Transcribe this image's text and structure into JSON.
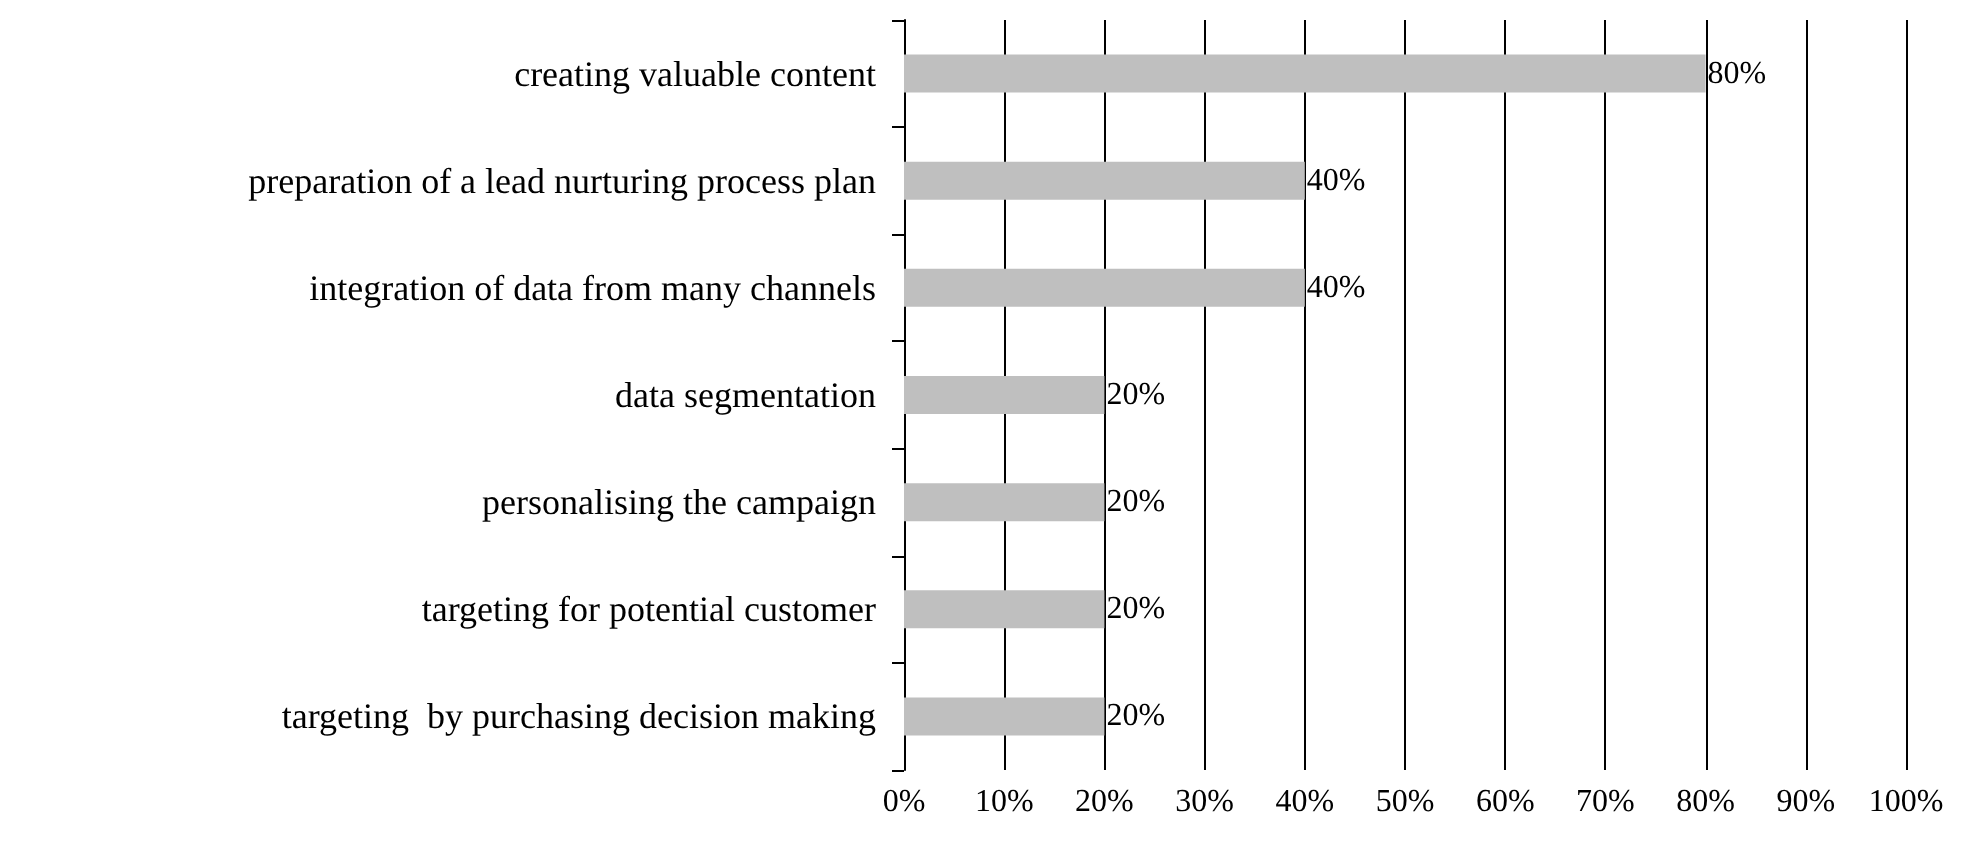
{
  "chart_data": {
    "type": "bar",
    "orientation": "horizontal",
    "categories": [
      "creating valuable content",
      "preparation of a lead nurturing process plan",
      "integration of data from many channels",
      "data segmentation",
      "personalising the campaign",
      "targeting for potential customer",
      "targeting  by purchasing decision making"
    ],
    "values": [
      80,
      40,
      40,
      20,
      20,
      20,
      20
    ],
    "value_labels": [
      "80%",
      "40%",
      "40%",
      "20%",
      "20%",
      "20%",
      "20%"
    ],
    "color": "#bfbfbf",
    "xlim": [
      0,
      100
    ],
    "xticks": [
      {
        "value": 0,
        "label": "0%"
      },
      {
        "value": 10,
        "label": "10%"
      },
      {
        "value": 20,
        "label": "20%"
      },
      {
        "value": 30,
        "label": "30%"
      },
      {
        "value": 40,
        "label": "40%"
      },
      {
        "value": 50,
        "label": "50%"
      },
      {
        "value": 60,
        "label": "60%"
      },
      {
        "value": 70,
        "label": "70%"
      },
      {
        "value": 80,
        "label": "80%"
      },
      {
        "value": 90,
        "label": "90%"
      },
      {
        "value": 100,
        "label": "100%"
      }
    ],
    "grid": "x"
  }
}
